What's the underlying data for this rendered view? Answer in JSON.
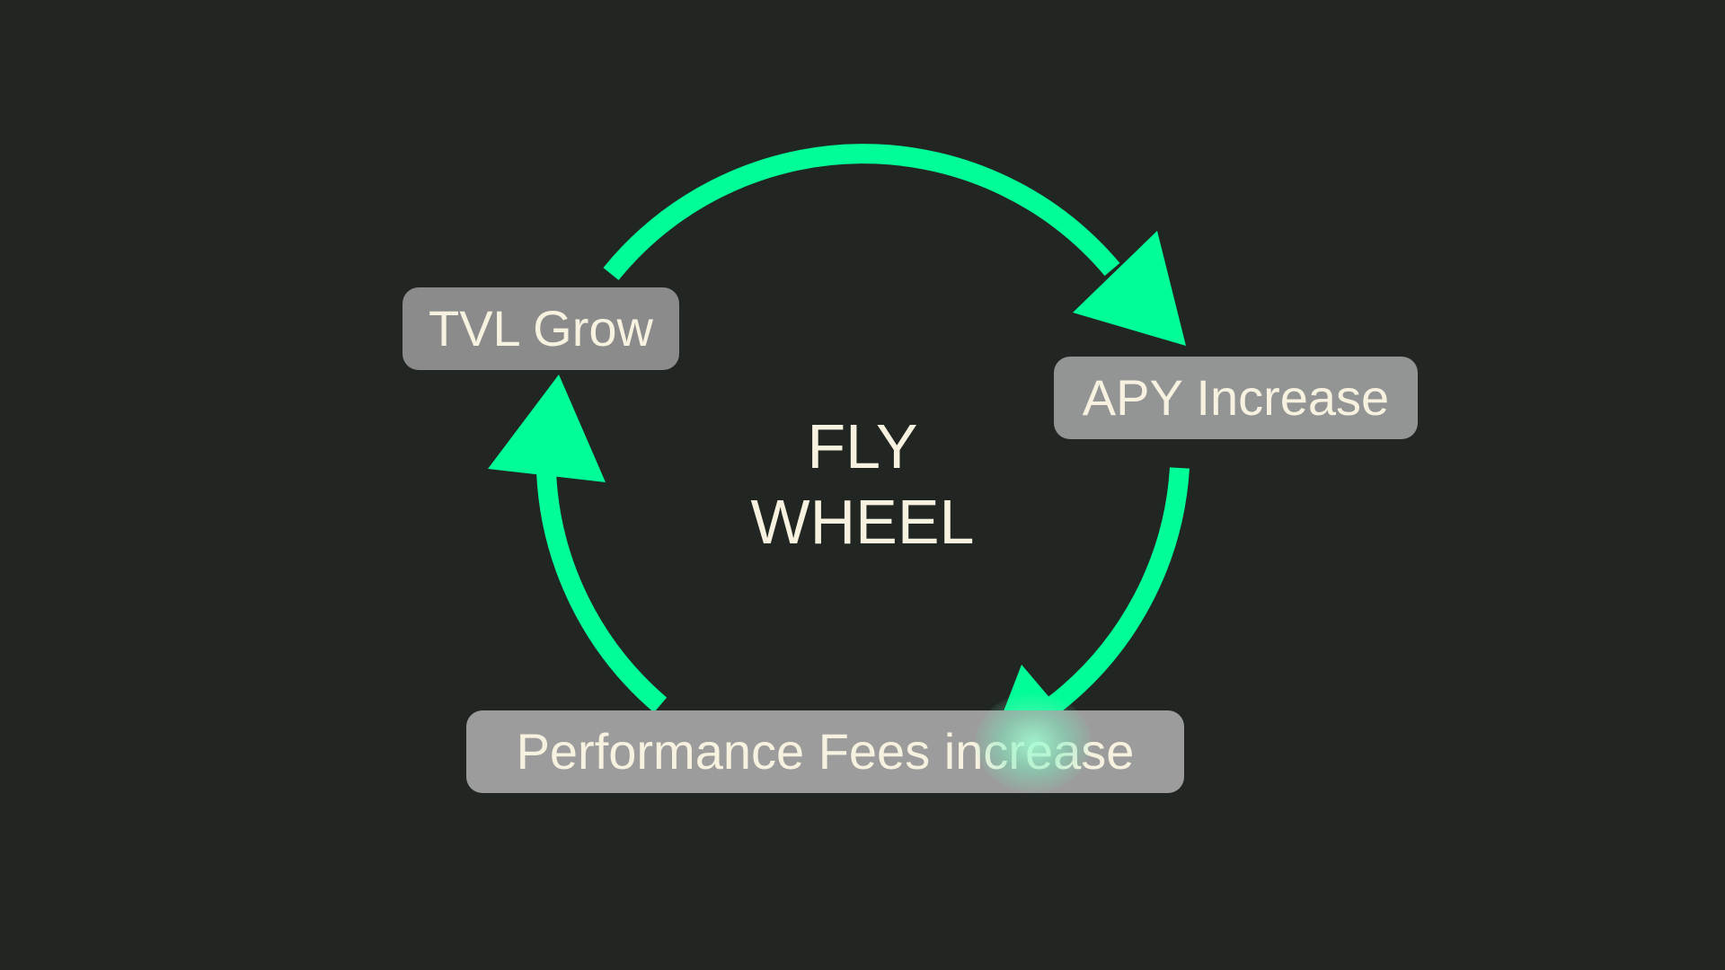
{
  "diagram": {
    "title_lines": [
      "FLY",
      "WHEEL"
    ],
    "nodes": {
      "tvl": "TVL Grow",
      "apy": "APY Increase",
      "fees": "Performance Fees increase"
    },
    "colors": {
      "background": "#212622",
      "arrow": "#00fd97",
      "node_fill": "#8a8b8a",
      "text": "#f7f1e0"
    }
  }
}
